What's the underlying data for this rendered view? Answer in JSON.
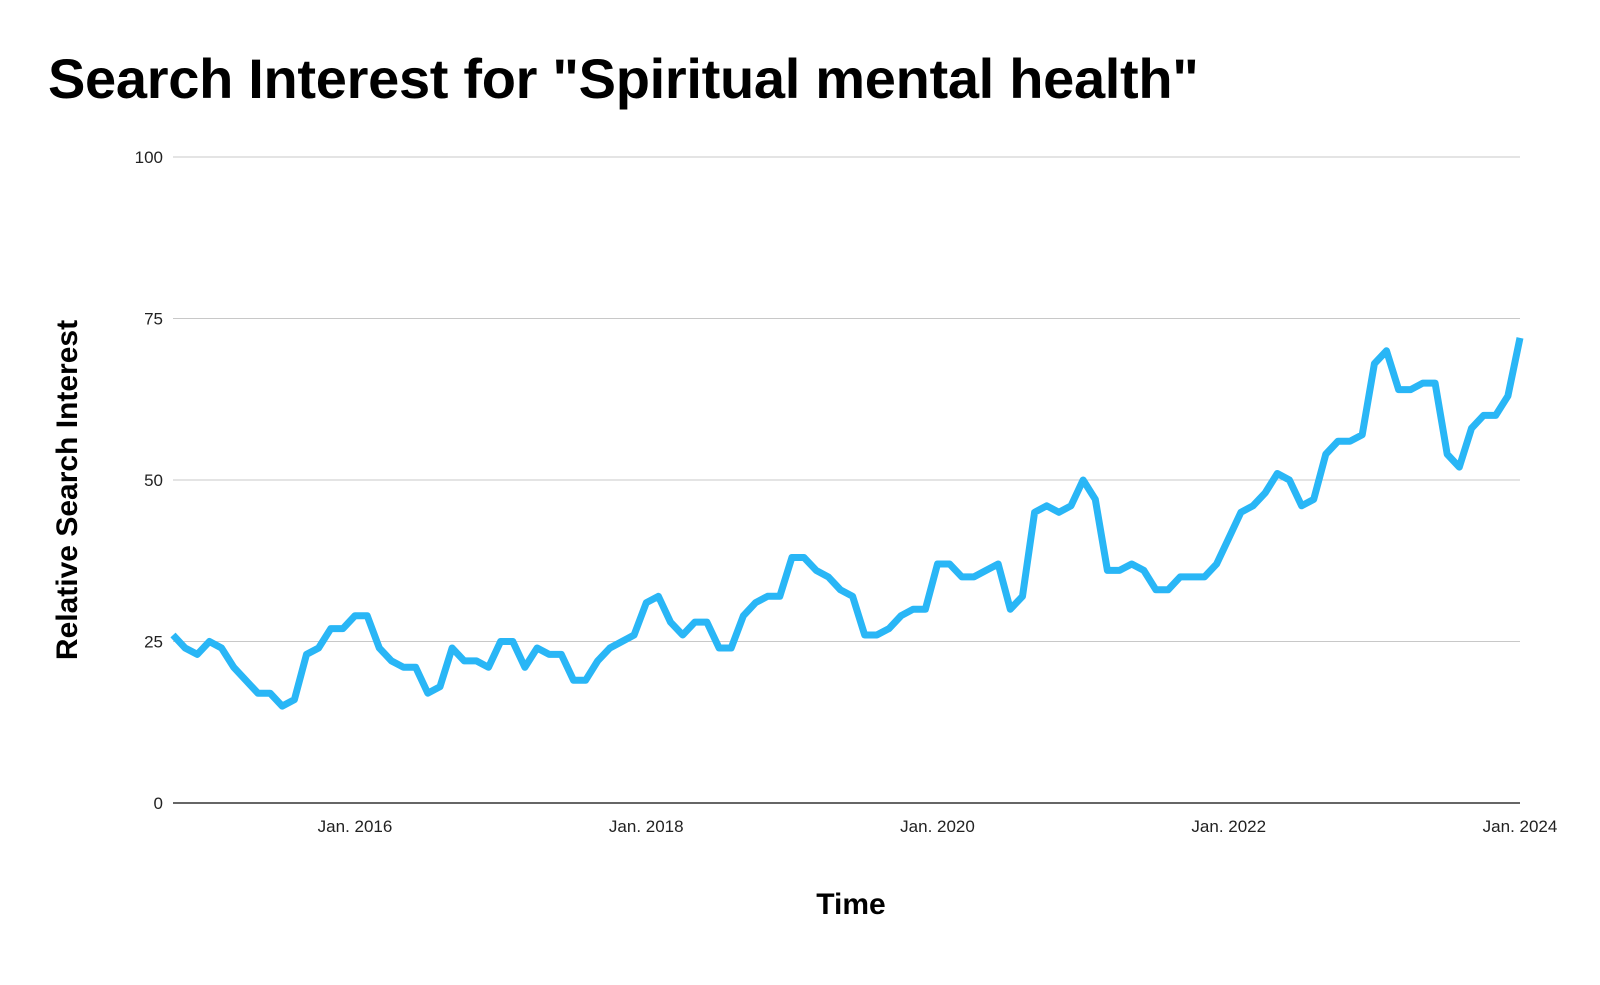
{
  "chart_data": {
    "type": "line",
    "title": "Search Interest for \"Spiritual mental health\"",
    "xlabel": "Time",
    "ylabel": "Relative Search Interest",
    "ylim": [
      0,
      100
    ],
    "yticks": [
      0,
      25,
      50,
      75,
      100
    ],
    "xlim": [
      "2014-10",
      "2024-01"
    ],
    "xticks": [
      {
        "x": "2016-01",
        "label": "Jan. 2016"
      },
      {
        "x": "2018-01",
        "label": "Jan. 2018"
      },
      {
        "x": "2020-01",
        "label": "Jan. 2020"
      },
      {
        "x": "2022-01",
        "label": "Jan. 2022"
      },
      {
        "x": "2024-01",
        "label": "Jan. 2024"
      }
    ],
    "grid": true,
    "color": "#29b6f6",
    "series": [
      {
        "points": [
          [
            "2014-10",
            26
          ],
          [
            "2014-11",
            24
          ],
          [
            "2014-12",
            23
          ],
          [
            "2015-01",
            25
          ],
          [
            "2015-02",
            24
          ],
          [
            "2015-03",
            21
          ],
          [
            "2015-04",
            19
          ],
          [
            "2015-05",
            17
          ],
          [
            "2015-06",
            17
          ],
          [
            "2015-07",
            15
          ],
          [
            "2015-08",
            16
          ],
          [
            "2015-09",
            23
          ],
          [
            "2015-10",
            24
          ],
          [
            "2015-11",
            27
          ],
          [
            "2015-12",
            27
          ],
          [
            "2016-01",
            29
          ],
          [
            "2016-02",
            29
          ],
          [
            "2016-03",
            24
          ],
          [
            "2016-04",
            22
          ],
          [
            "2016-05",
            21
          ],
          [
            "2016-06",
            21
          ],
          [
            "2016-07",
            17
          ],
          [
            "2016-08",
            18
          ],
          [
            "2016-09",
            24
          ],
          [
            "2016-10",
            22
          ],
          [
            "2016-11",
            22
          ],
          [
            "2016-12",
            21
          ],
          [
            "2017-01",
            25
          ],
          [
            "2017-02",
            25
          ],
          [
            "2017-03",
            21
          ],
          [
            "2017-04",
            24
          ],
          [
            "2017-05",
            23
          ],
          [
            "2017-06",
            23
          ],
          [
            "2017-07",
            19
          ],
          [
            "2017-08",
            19
          ],
          [
            "2017-09",
            22
          ],
          [
            "2017-10",
            24
          ],
          [
            "2017-11",
            25
          ],
          [
            "2017-12",
            26
          ],
          [
            "2018-01",
            31
          ],
          [
            "2018-02",
            32
          ],
          [
            "2018-03",
            28
          ],
          [
            "2018-04",
            26
          ],
          [
            "2018-05",
            28
          ],
          [
            "2018-06",
            28
          ],
          [
            "2018-07",
            24
          ],
          [
            "2018-08",
            24
          ],
          [
            "2018-09",
            29
          ],
          [
            "2018-10",
            31
          ],
          [
            "2018-11",
            32
          ],
          [
            "2018-12",
            32
          ],
          [
            "2019-01",
            38
          ],
          [
            "2019-02",
            38
          ],
          [
            "2019-03",
            36
          ],
          [
            "2019-04",
            35
          ],
          [
            "2019-05",
            33
          ],
          [
            "2019-06",
            32
          ],
          [
            "2019-07",
            26
          ],
          [
            "2019-08",
            26
          ],
          [
            "2019-09",
            27
          ],
          [
            "2019-10",
            29
          ],
          [
            "2019-11",
            30
          ],
          [
            "2019-12",
            30
          ],
          [
            "2020-01",
            37
          ],
          [
            "2020-02",
            37
          ],
          [
            "2020-03",
            35
          ],
          [
            "2020-04",
            35
          ],
          [
            "2020-05",
            36
          ],
          [
            "2020-06",
            37
          ],
          [
            "2020-07",
            30
          ],
          [
            "2020-08",
            32
          ],
          [
            "2020-09",
            45
          ],
          [
            "2020-10",
            46
          ],
          [
            "2020-11",
            45
          ],
          [
            "2020-12",
            46
          ],
          [
            "2021-01",
            50
          ],
          [
            "2021-02",
            47
          ],
          [
            "2021-03",
            36
          ],
          [
            "2021-04",
            36
          ],
          [
            "2021-05",
            37
          ],
          [
            "2021-06",
            36
          ],
          [
            "2021-07",
            33
          ],
          [
            "2021-08",
            33
          ],
          [
            "2021-09",
            35
          ],
          [
            "2021-10",
            35
          ],
          [
            "2021-11",
            35
          ],
          [
            "2021-12",
            37
          ],
          [
            "2022-01",
            41
          ],
          [
            "2022-02",
            45
          ],
          [
            "2022-03",
            46
          ],
          [
            "2022-04",
            48
          ],
          [
            "2022-05",
            51
          ],
          [
            "2022-06",
            50
          ],
          [
            "2022-07",
            46
          ],
          [
            "2022-08",
            47
          ],
          [
            "2022-09",
            54
          ],
          [
            "2022-10",
            56
          ],
          [
            "2022-11",
            56
          ],
          [
            "2022-12",
            57
          ],
          [
            "2023-01",
            68
          ],
          [
            "2023-02",
            70
          ],
          [
            "2023-03",
            64
          ],
          [
            "2023-04",
            64
          ],
          [
            "2023-05",
            65
          ],
          [
            "2023-06",
            65
          ],
          [
            "2023-07",
            54
          ],
          [
            "2023-08",
            52
          ],
          [
            "2023-09",
            58
          ],
          [
            "2023-10",
            60
          ],
          [
            "2023-11",
            60
          ],
          [
            "2023-12",
            63
          ],
          [
            "2024-01",
            72
          ]
        ]
      }
    ]
  }
}
